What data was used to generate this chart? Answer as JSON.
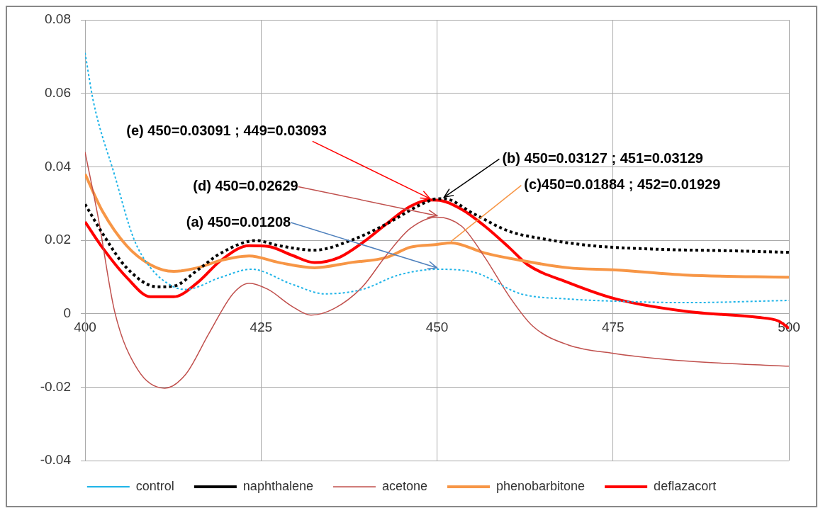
{
  "chart_data": {
    "type": "line",
    "xlim": [
      400,
      500
    ],
    "xticks": [
      400,
      425,
      450,
      475,
      500
    ],
    "ylim": [
      -0.04,
      0.08
    ],
    "yticks": [
      -0.04,
      -0.02,
      0,
      0.02,
      0.04,
      0.06,
      0.08
    ],
    "grid": true,
    "legend": "bottom",
    "marker": "none",
    "series": [
      {
        "name": "control",
        "color": "#1fb4e8",
        "line_style": "dotted",
        "x": [
          400,
          401.2,
          404.2,
          406.9,
          409.3,
          412.6,
          414.3,
          419.3,
          423.6,
          429.4,
          434.1,
          439.4,
          444.5,
          450,
          455.2,
          461.9,
          468.6,
          475.4,
          485.4,
          500
        ],
        "values": [
          0.071,
          0.0576,
          0.0377,
          0.0205,
          0.0125,
          0.0073,
          0.0066,
          0.0099,
          0.0121,
          0.008,
          0.0054,
          0.0066,
          0.0105,
          0.01208,
          0.0113,
          0.0054,
          0.004,
          0.0034,
          0.003,
          0.0036
        ]
      },
      {
        "name": "naphthalene",
        "color": "#000000",
        "line_style": "dotted",
        "x": [
          400,
          402.5,
          405.9,
          410.3,
          412.6,
          416,
          419.3,
          424.3,
          427.6,
          432.6,
          437.7,
          442.8,
          447.8,
          450,
          451,
          455.2,
          460.3,
          465.3,
          472,
          482,
          492,
          500
        ],
        "values": [
          0.0298,
          0.0218,
          0.0125,
          0.0073,
          0.0075,
          0.0119,
          0.0165,
          0.0199,
          0.0185,
          0.0173,
          0.0199,
          0.0244,
          0.0298,
          0.03127,
          0.03129,
          0.0272,
          0.0224,
          0.0203,
          0.0185,
          0.0175,
          0.0171,
          0.0167
        ]
      },
      {
        "name": "acetone",
        "color": "#c0504d",
        "line_style": "solid",
        "x": [
          400,
          401.9,
          404.2,
          407.5,
          411.3,
          414.3,
          417.6,
          421,
          423.3,
          426,
          429.4,
          432.1,
          435.4,
          439.4,
          442.8,
          446.2,
          450,
          453.5,
          456.8,
          460.3,
          463.6,
          468.6,
          475.4,
          485.4,
          500
        ],
        "values": [
          0.044,
          0.0258,
          0.0006,
          -0.0153,
          -0.0203,
          -0.0165,
          -0.0054,
          0.0054,
          0.0083,
          0.0066,
          0.002,
          -0.0004,
          0.0014,
          0.0073,
          0.0159,
          0.0232,
          0.02629,
          0.0238,
          0.0153,
          0.0046,
          -0.0034,
          -0.0085,
          -0.0109,
          -0.0129,
          -0.0143
        ]
      },
      {
        "name": "phenobarbitone",
        "color": "#f79646",
        "line_style": "solid",
        "x": [
          400,
          402.5,
          405.9,
          409.3,
          412.6,
          416,
          419.3,
          423.3,
          427.6,
          432.6,
          437.7,
          442.8,
          446.2,
          450,
          452,
          456.8,
          461.9,
          468.6,
          475.4,
          485.4,
          500
        ],
        "values": [
          0.038,
          0.0278,
          0.0185,
          0.0133,
          0.0115,
          0.0125,
          0.0145,
          0.0157,
          0.0139,
          0.0125,
          0.0139,
          0.0153,
          0.0181,
          0.01884,
          0.01929,
          0.0165,
          0.0145,
          0.0125,
          0.0119,
          0.0105,
          0.0099
        ]
      },
      {
        "name": "deflazacort",
        "color": "#ff0000",
        "line_style": "solid",
        "x": [
          400,
          402.5,
          405.9,
          409.3,
          412.6,
          416,
          419.3,
          423.3,
          426,
          429.4,
          432.6,
          436.1,
          439.4,
          442.8,
          446.2,
          449,
          450,
          453.5,
          456.8,
          460.3,
          462.9,
          468.6,
          475.4,
          485.4,
          495.5,
          498.5,
          500
        ],
        "values": [
          0.025,
          0.0179,
          0.0099,
          0.0046,
          0.0046,
          0.0085,
          0.0145,
          0.0185,
          0.0183,
          0.0159,
          0.0139,
          0.0153,
          0.0193,
          0.0244,
          0.0292,
          0.03093,
          0.03091,
          0.0284,
          0.0238,
          0.0179,
          0.0133,
          0.0085,
          0.004,
          0.0006,
          -0.001,
          -0.002,
          -0.004
        ]
      }
    ],
    "annotations": [
      {
        "text": "(e) 450=0.03091 ; 449=0.03093",
        "x": 449,
        "y": 0.03093
      },
      {
        "text": "(b) 450=0.03127 ; 451=0.03129",
        "x": 451,
        "y": 0.03129
      },
      {
        "text": "(d) 450=0.02629",
        "x": 450,
        "y": 0.02629
      },
      {
        "text": "(c)450=0.01884 ; 452=0.01929",
        "x": 452,
        "y": 0.01929
      },
      {
        "text": "(a) 450=0.01208",
        "x": 450,
        "y": 0.01208
      }
    ]
  }
}
